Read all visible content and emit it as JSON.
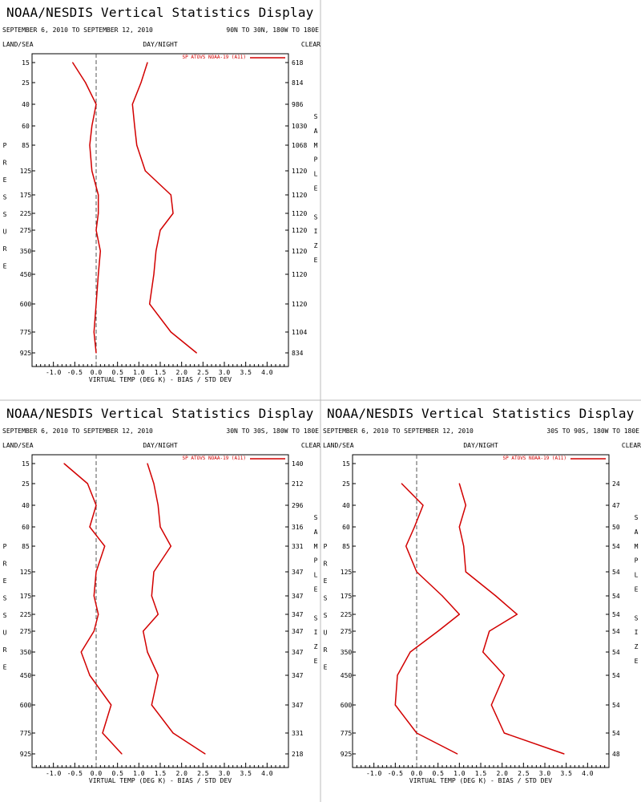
{
  "colors": {
    "background": "#ffffff",
    "text": "#000000",
    "series": "#d20000",
    "divider": "#bbbbbb",
    "zero_line": "#555555"
  },
  "labels": {
    "land_sea": "LAND/SEA",
    "day_night": "DAY/NIGHT",
    "clear": "CLEAR",
    "pressure_vertical": "PRESSURE",
    "sample_size_vertical": "SAMPLE SIZE",
    "xlabel": "VIRTUAL TEMP (DEG K) - BIAS / STD DEV"
  },
  "x_ticks": [
    "-1.0",
    "-0.5",
    "0.0",
    "0.5",
    "1.0",
    "1.5",
    "2.0",
    "2.5",
    "3.0",
    "3.5",
    "4.0"
  ],
  "pressure_levels": [
    15,
    25,
    40,
    60,
    85,
    125,
    175,
    225,
    275,
    350,
    450,
    600,
    775,
    925
  ],
  "chart_data": [
    {
      "type": "line",
      "title": "NOAA/NESDIS Vertical Statistics Display",
      "date_range": "SEPTEMBER 6, 2010 TO SEPTEMBER 12, 2010",
      "region": "90N TO 30N, 180W TO 180E",
      "legend": "SP ATOVS NOAA-19 (A11)",
      "legend_position": "top-right",
      "xlim": [
        -1.5,
        4.5
      ],
      "ylabel": "PRESSURE",
      "pressure": [
        15,
        25,
        40,
        60,
        85,
        125,
        175,
        225,
        275,
        350,
        450,
        600,
        775,
        925
      ],
      "sample_size": [
        "618",
        "814",
        "986",
        "1030",
        "1068",
        "1120",
        "1120",
        "1120",
        "1120",
        "1120",
        "1120",
        "1120",
        "1104",
        "834"
      ],
      "series": [
        {
          "name": "SP ATOVS NOAA-19 (A11)",
          "kind": "bias",
          "values": [
            -0.55,
            -0.25,
            0.0,
            -0.1,
            -0.15,
            -0.1,
            0.05,
            0.05,
            0.0,
            0.1,
            0.05,
            0.0,
            -0.05,
            0.0
          ]
        },
        {
          "name": "SP ATOVS NOAA-19 (A11)",
          "kind": "std_dev",
          "values": [
            1.2,
            1.05,
            0.85,
            0.9,
            0.95,
            1.15,
            1.75,
            1.8,
            1.5,
            1.4,
            1.35,
            1.25,
            1.75,
            2.35
          ]
        }
      ]
    },
    {
      "type": "line",
      "title": "NOAA/NESDIS Vertical Statistics Display",
      "date_range": "SEPTEMBER 6, 2010 TO SEPTEMBER 12, 2010",
      "region": "30N TO 30S, 180W TO 180E",
      "legend": "SP ATOVS NOAA-19 (A11)",
      "legend_position": "top-right",
      "xlim": [
        -1.5,
        4.5
      ],
      "ylabel": "PRESSURE",
      "pressure": [
        15,
        25,
        40,
        60,
        85,
        125,
        175,
        225,
        275,
        350,
        450,
        600,
        775,
        925
      ],
      "sample_size": [
        "140",
        "212",
        "296",
        "316",
        "331",
        "347",
        "347",
        "347",
        "347",
        "347",
        "347",
        "347",
        "331",
        "218"
      ],
      "series": [
        {
          "name": "SP ATOVS NOAA-19 (A11)",
          "kind": "bias",
          "values": [
            -0.75,
            -0.2,
            0.0,
            -0.15,
            0.2,
            0.0,
            -0.05,
            0.05,
            -0.05,
            -0.35,
            -0.15,
            0.35,
            0.15,
            0.6
          ]
        },
        {
          "name": "SP ATOVS NOAA-19 (A11)",
          "kind": "std_dev",
          "values": [
            1.2,
            1.35,
            1.45,
            1.5,
            1.75,
            1.35,
            1.3,
            1.45,
            1.1,
            1.2,
            1.45,
            1.3,
            1.8,
            2.55
          ]
        }
      ]
    },
    {
      "type": "line",
      "title": "NOAA/NESDIS Vertical Statistics Display",
      "date_range": "SEPTEMBER 6, 2010 TO SEPTEMBER 12, 2010",
      "region": "30S TO 90S, 180W TO 180E",
      "legend": "SP ATOVS NOAA-19 (A11)",
      "legend_position": "top-right",
      "xlim": [
        -1.5,
        4.5
      ],
      "ylabel": "PRESSURE",
      "pressure": [
        15,
        25,
        40,
        60,
        85,
        125,
        175,
        225,
        275,
        350,
        450,
        600,
        775,
        925
      ],
      "sample_size": [
        "",
        "24",
        "47",
        "50",
        "54",
        "54",
        "54",
        "54",
        "54",
        "54",
        "54",
        "54",
        "54",
        "48"
      ],
      "series": [
        {
          "name": "SP ATOVS NOAA-19 (A11)",
          "kind": "bias",
          "values": [
            null,
            -0.35,
            0.15,
            -0.05,
            -0.25,
            0.0,
            0.6,
            1.0,
            0.5,
            -0.15,
            -0.45,
            -0.5,
            0.0,
            0.95
          ]
        },
        {
          "name": "SP ATOVS NOAA-19 (A11)",
          "kind": "std_dev",
          "values": [
            null,
            1.0,
            1.15,
            1.0,
            1.1,
            1.15,
            1.85,
            2.35,
            1.7,
            1.55,
            2.05,
            1.75,
            2.05,
            3.45
          ]
        }
      ]
    }
  ]
}
